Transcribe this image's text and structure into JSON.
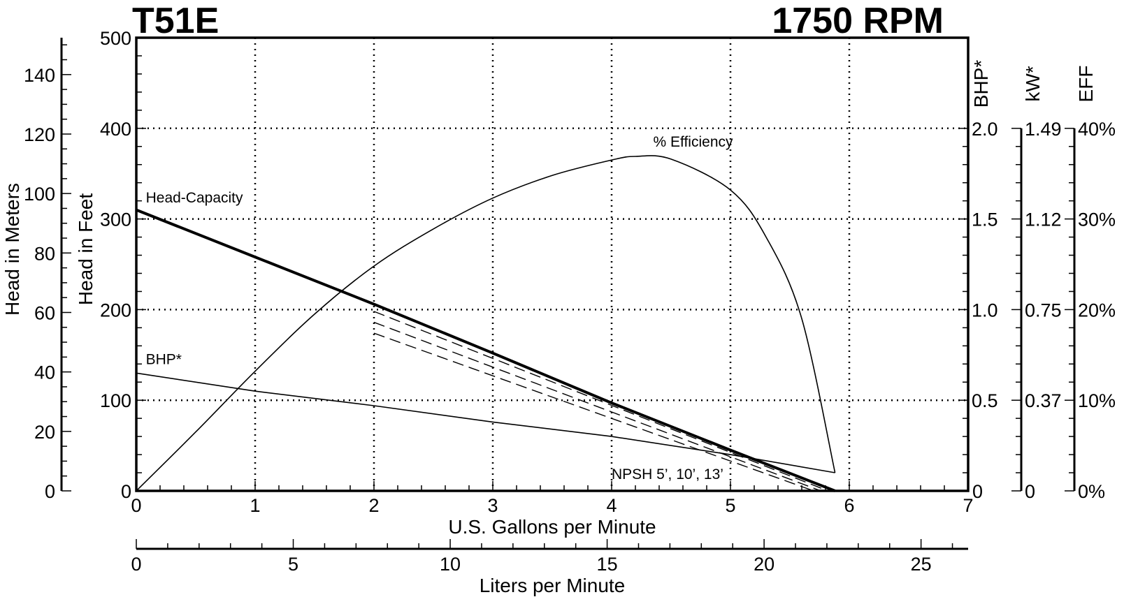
{
  "header": {
    "model": "T51E",
    "speed": "1750 RPM"
  },
  "chart_data": {
    "type": "line",
    "title": "T51E",
    "subtitle": "1750 RPM",
    "xlabel": "U.S. Gallons per Minute",
    "x2label": "Liters per Minute",
    "ylabel": "Head in Feet",
    "y2label": "Head in Meters",
    "xlim": [
      0,
      7
    ],
    "x2lim": [
      0,
      26.5
    ],
    "ylim": [
      0,
      500
    ],
    "y2lim": [
      0,
      152.4
    ],
    "grid": true,
    "x_ticks": [
      "0",
      "1",
      "2",
      "3",
      "4",
      "5",
      "6",
      "7"
    ],
    "x2_ticks": [
      "0",
      "5",
      "10",
      "15",
      "20",
      "25"
    ],
    "y_ticks": [
      "0",
      "100",
      "200",
      "300",
      "400",
      "500"
    ],
    "y2_ticks": [
      "0",
      "20",
      "40",
      "60",
      "80",
      "100",
      "120",
      "140"
    ],
    "right_axes": [
      {
        "label": "BHP*",
        "ticks": [
          "",
          "0.5",
          "1.0",
          "1.5",
          "2.0"
        ],
        "bottom_label": "0",
        "range": [
          0,
          2.0
        ]
      },
      {
        "label": "kW*",
        "ticks": [
          "0",
          "0.37",
          "0.75",
          "1.12",
          "1.49"
        ],
        "range": [
          0,
          1.49
        ]
      },
      {
        "label": "EFF",
        "ticks": [
          "0%",
          "10%",
          "20%",
          "30%",
          "40%"
        ],
        "range": [
          0,
          40
        ]
      }
    ],
    "series": [
      {
        "name": "Head-Capacity",
        "axis": "feet",
        "x": [
          0,
          1,
          2,
          3,
          4,
          5,
          5.88
        ],
        "y": [
          310,
          258,
          206,
          152,
          97,
          45,
          0
        ]
      },
      {
        "name": "% Efficiency",
        "axis": "eff",
        "x": [
          0,
          0.5,
          1,
          1.5,
          2,
          2.5,
          3,
          3.5,
          4,
          4.2,
          4.5,
          5,
          5.3,
          5.6,
          5.88
        ],
        "y": [
          0,
          6.5,
          13.2,
          19.5,
          24.8,
          28.9,
          32.3,
          34.8,
          36.5,
          36.9,
          36.6,
          33.2,
          28.0,
          19.0,
          2.0
        ]
      },
      {
        "name": "BHP*",
        "axis": "bhp",
        "x": [
          0,
          1,
          2,
          3,
          4,
          5,
          5.88
        ],
        "y": [
          0.65,
          0.55,
          0.47,
          0.38,
          0.3,
          0.2,
          0.1
        ]
      }
    ],
    "npsh": {
      "label": "NPSH 5’, 10’, 13’",
      "lines": [
        {
          "x": [
            2,
            5.82
          ],
          "y": [
            198,
            0
          ]
        },
        {
          "x": [
            2,
            5.76
          ],
          "y": [
            186,
            0
          ]
        },
        {
          "x": [
            2,
            5.7
          ],
          "y": [
            174,
            0
          ]
        }
      ]
    }
  }
}
